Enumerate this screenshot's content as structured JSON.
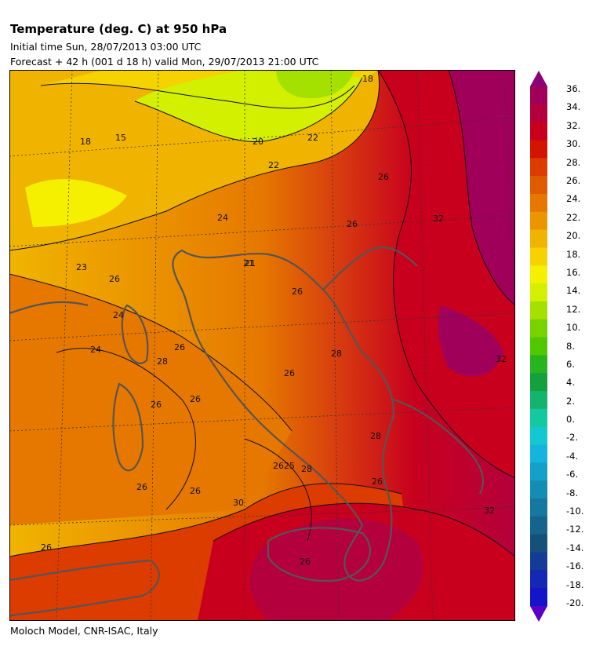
{
  "header": {
    "title": "Temperature (deg. C) at 950 hPa",
    "initial_time": "Initial time  Sun, 28/07/2013  03:00 UTC",
    "forecast": "Forecast  +  42 h  (001 d 18 h)  valid Mon, 29/07/2013 21:00 UTC"
  },
  "footer": "Moloch Model, CNR-ISAC, Italy",
  "colorbar": {
    "labels": [
      "36.",
      "34.",
      "32.",
      "30.",
      "28.",
      "26.",
      "24.",
      "22.",
      "20.",
      "18.",
      "16.",
      "14.",
      "12.",
      "10.",
      "8.",
      "6.",
      "4.",
      "2.",
      "0.",
      "-2.",
      "-4.",
      "-6.",
      "-8.",
      "-10.",
      "-12.",
      "-14.",
      "-16.",
      "-18.",
      "-20."
    ],
    "colors": [
      "#a0005a",
      "#b4003c",
      "#c8001e",
      "#d21400",
      "#dc3c00",
      "#e05a00",
      "#e67800",
      "#eb9600",
      "#f0b400",
      "#f5d200",
      "#f5f000",
      "#d2f000",
      "#a5e100",
      "#78d200",
      "#50c800",
      "#28b41e",
      "#14a03c",
      "#14b46e",
      "#14c8a0",
      "#14c8d2",
      "#14b4dc",
      "#14a0c8",
      "#148cb4",
      "#1478a0",
      "#14648c",
      "#145078",
      "#143c96",
      "#1428b4",
      "#1414c8"
    ],
    "top_arrow_color": "#8c0078",
    "bottom_arrow_color": "#5a00c8"
  },
  "map_labels": [
    "15",
    "18",
    "20",
    "21",
    "22",
    "23",
    "24",
    "25",
    "26",
    "28",
    "30",
    "32"
  ],
  "contour_values": [
    {
      "text": "15"
    },
    {
      "text": "18"
    },
    {
      "text": "18"
    },
    {
      "text": "20"
    },
    {
      "text": "22"
    },
    {
      "text": "21"
    },
    {
      "text": "22"
    },
    {
      "text": "24"
    },
    {
      "text": "26"
    },
    {
      "text": "26"
    },
    {
      "text": "21"
    },
    {
      "text": "26"
    },
    {
      "text": "23"
    },
    {
      "text": "26"
    },
    {
      "text": "24"
    },
    {
      "text": "24"
    },
    {
      "text": "26"
    },
    {
      "text": "28"
    },
    {
      "text": "26"
    },
    {
      "text": "26"
    },
    {
      "text": "28"
    },
    {
      "text": "26"
    },
    {
      "text": "2625"
    },
    {
      "text": "28"
    },
    {
      "text": "26"
    },
    {
      "text": "26"
    },
    {
      "text": "30"
    },
    {
      "text": "26"
    },
    {
      "text": "26"
    },
    {
      "text": "32"
    },
    {
      "text": "32"
    },
    {
      "text": "32"
    },
    {
      "text": "26"
    },
    {
      "text": "28"
    }
  ]
}
